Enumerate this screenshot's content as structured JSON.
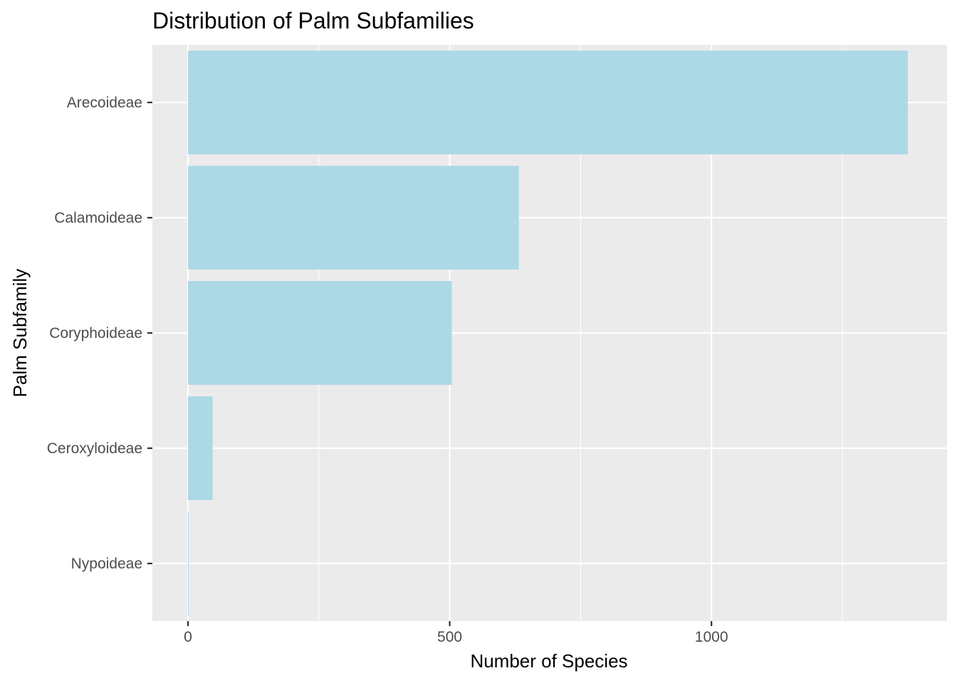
{
  "chart_data": {
    "type": "bar",
    "orientation": "horizontal",
    "title": "Distribution of Palm Subfamilies",
    "xlabel": "Number of Species",
    "ylabel": "Palm Subfamily",
    "categories": [
      "Arecoideae",
      "Calamoideae",
      "Coryphoideae",
      "Ceroxyloideae",
      "Nypoideae"
    ],
    "values": [
      1375,
      632,
      504,
      47,
      1
    ],
    "xlim": [
      -68,
      1450
    ],
    "xticks": [
      0,
      500,
      1000
    ],
    "xtick_labels": [
      "0",
      "500",
      "1000"
    ],
    "grid": true,
    "legend": "none",
    "colors": {
      "bar": "#add8e6",
      "panel": "#ebebeb",
      "grid": "#ffffff"
    }
  }
}
